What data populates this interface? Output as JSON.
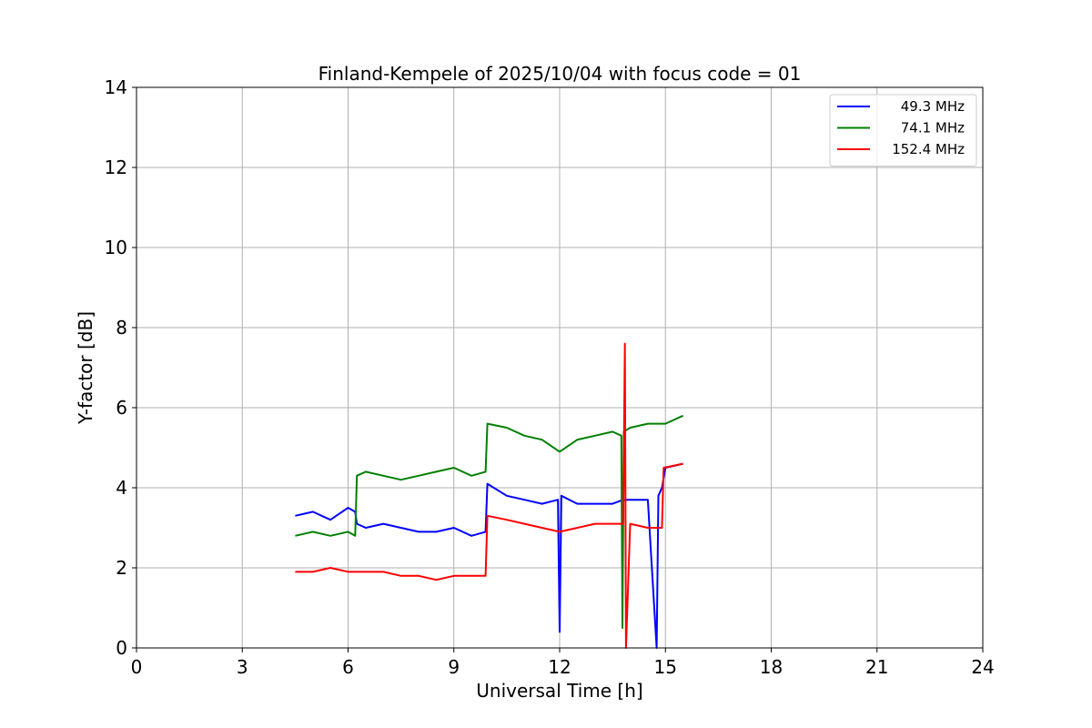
{
  "chart_data": {
    "type": "line",
    "title": "Finland-Kempele of 2025/10/04 with focus code = 01",
    "xlabel": "Universal Time [h]",
    "ylabel": "Y-factor [dB]",
    "xlim": [
      0,
      24
    ],
    "ylim": [
      0,
      14
    ],
    "xticks": [
      0,
      3,
      6,
      9,
      12,
      15,
      18,
      21,
      24
    ],
    "yticks": [
      0,
      2,
      4,
      6,
      8,
      10,
      12,
      14
    ],
    "grid": true,
    "legend_position": "top-right",
    "series": [
      {
        "name": "49.3 MHz",
        "color": "#0000ff",
        "x": [
          4.5,
          5.0,
          5.5,
          6.0,
          6.2,
          6.25,
          6.5,
          7.0,
          7.5,
          8.0,
          8.5,
          9.0,
          9.5,
          9.9,
          9.95,
          10.5,
          11.0,
          11.5,
          11.95,
          12.0,
          12.05,
          12.5,
          13.0,
          13.5,
          13.8,
          14.0,
          14.5,
          14.75,
          14.8,
          14.9,
          15.0,
          15.5
        ],
        "y": [
          3.3,
          3.4,
          3.2,
          3.5,
          3.4,
          3.1,
          3.0,
          3.1,
          3.0,
          2.9,
          2.9,
          3.0,
          2.8,
          2.9,
          4.1,
          3.8,
          3.7,
          3.6,
          3.7,
          0.4,
          3.8,
          3.6,
          3.6,
          3.6,
          3.7,
          3.7,
          3.7,
          0.0,
          3.8,
          4.0,
          4.5,
          4.6
        ]
      },
      {
        "name": "74.1 MHz",
        "color": "#008000",
        "x": [
          4.5,
          5.0,
          5.5,
          6.0,
          6.2,
          6.25,
          6.5,
          7.0,
          7.5,
          8.0,
          8.5,
          9.0,
          9.5,
          9.9,
          9.95,
          10.5,
          11.0,
          11.5,
          12.0,
          12.5,
          13.0,
          13.5,
          13.75,
          13.78,
          13.82,
          14.0,
          14.5,
          15.0,
          15.5
        ],
        "y": [
          2.8,
          2.9,
          2.8,
          2.9,
          2.8,
          4.3,
          4.4,
          4.3,
          4.2,
          4.3,
          4.4,
          4.5,
          4.3,
          4.4,
          5.6,
          5.5,
          5.3,
          5.2,
          4.9,
          5.2,
          5.3,
          5.4,
          5.3,
          0.5,
          5.4,
          5.5,
          5.6,
          5.6,
          5.8
        ]
      },
      {
        "name": "152.4 MHz",
        "color": "#ff0000",
        "x": [
          4.5,
          5.0,
          5.5,
          6.0,
          6.5,
          7.0,
          7.5,
          8.0,
          8.5,
          9.0,
          9.5,
          9.9,
          9.95,
          10.5,
          11.0,
          11.5,
          12.0,
          12.5,
          13.0,
          13.5,
          13.8,
          13.85,
          13.88,
          14.0,
          14.5,
          14.9,
          14.95,
          15.5
        ],
        "y": [
          1.9,
          1.9,
          2.0,
          1.9,
          1.9,
          1.9,
          1.8,
          1.8,
          1.7,
          1.8,
          1.8,
          1.8,
          3.3,
          3.2,
          3.1,
          3.0,
          2.9,
          3.0,
          3.1,
          3.1,
          3.1,
          7.6,
          0.0,
          3.1,
          3.0,
          3.0,
          4.5,
          4.6
        ]
      }
    ]
  }
}
